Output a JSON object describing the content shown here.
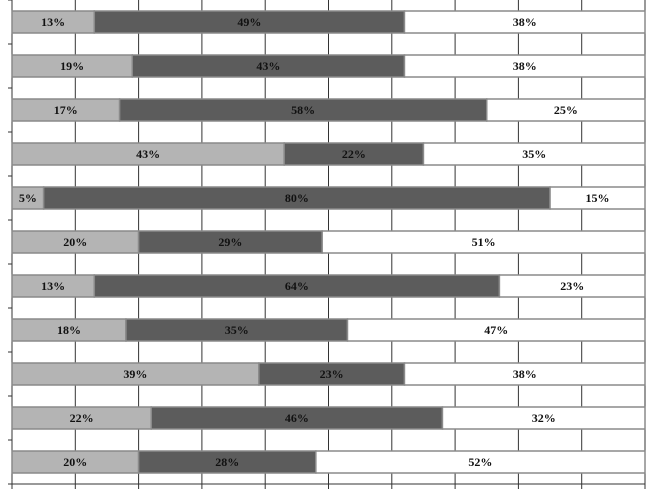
{
  "chart_data": {
    "type": "stacked-barh",
    "xlim": [
      0,
      100
    ],
    "xticks": [
      0,
      10,
      20,
      30,
      40,
      50,
      60,
      70,
      80,
      90,
      100
    ],
    "grid": true,
    "series": [
      {
        "color": "#b4b4b4",
        "values": [
          13,
          19,
          17,
          43,
          5,
          20,
          13,
          18,
          39,
          22,
          20
        ],
        "value_labels": [
          "13%",
          "19%",
          "17%",
          "43%",
          "5%",
          "20%",
          "13%",
          "18%",
          "39%",
          "22%",
          "20%"
        ]
      },
      {
        "color": "#5c5c5c",
        "values": [
          49,
          43,
          58,
          22,
          80,
          29,
          64,
          35,
          23,
          46,
          28
        ],
        "value_labels": [
          "49%",
          "43%",
          "58%",
          "22%",
          "80%",
          "29%",
          "64%",
          "35%",
          "23%",
          "46%",
          "28%"
        ]
      },
      {
        "color": "#ffffff",
        "values": [
          38,
          38,
          25,
          35,
          15,
          51,
          23,
          47,
          38,
          32,
          52
        ],
        "value_labels": [
          "38%",
          "38%",
          "25%",
          "35%",
          "15%",
          "51%",
          "23%",
          "47%",
          "38%",
          "32%",
          "52%"
        ]
      }
    ]
  }
}
